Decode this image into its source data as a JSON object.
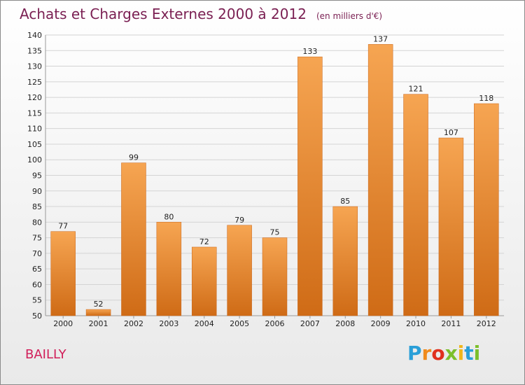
{
  "header": {
    "title": "Achats et Charges Externes 2000 à 2012",
    "subtitle": "(en milliers d'€)"
  },
  "footer": {
    "commune": "BAILLY",
    "logo": "Proxiti"
  },
  "colors": {
    "title": "#7a1f52",
    "commune": "#d11e59",
    "bar_top": "#f6a552",
    "bar_bottom": "#cf6b16"
  },
  "chart_data": {
    "type": "bar",
    "categories": [
      "2000",
      "2001",
      "2002",
      "2003",
      "2004",
      "2005",
      "2006",
      "2007",
      "2008",
      "2009",
      "2010",
      "2011",
      "2012"
    ],
    "values": [
      77,
      52,
      99,
      80,
      72,
      79,
      75,
      133,
      85,
      137,
      121,
      107,
      118
    ],
    "title": "Achats et Charges Externes 2000 à 2012",
    "ylim": [
      50,
      140
    ],
    "yticks": [
      50,
      55,
      60,
      65,
      70,
      75,
      80,
      85,
      90,
      95,
      100,
      105,
      110,
      115,
      120,
      125,
      130,
      135,
      140
    ],
    "grid": true,
    "data_labels": true
  }
}
